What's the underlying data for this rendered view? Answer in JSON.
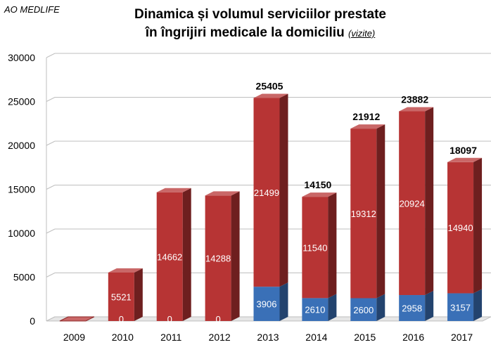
{
  "header": {
    "brand": "AO MEDLIFE",
    "title_line1": "Dinamica și volumul serviciilor prestate",
    "title_line2": "în îngrijiri medicale la domiciliu",
    "title_unit": "(vizite)"
  },
  "chart_data": {
    "type": "bar",
    "stacked": true,
    "categories": [
      "2009",
      "2010",
      "2011",
      "2012",
      "2013",
      "2014",
      "2015",
      "2016",
      "2017"
    ],
    "series": [
      {
        "values": [
          0,
          0,
          0,
          0,
          3906,
          2610,
          2600,
          2958,
          3157
        ],
        "color": "#3a70b7"
      },
      {
        "values": [
          0,
          5521,
          14662,
          14288,
          21499,
          11540,
          19312,
          20924,
          14940
        ],
        "color": "#b73434"
      }
    ],
    "segment_labels": [
      [
        "0",
        "0",
        "0",
        "0",
        "3906",
        "2610",
        "2600",
        "2958",
        "3157"
      ],
      [
        "",
        "5521",
        "14662",
        "14288",
        "21499",
        "11540",
        "19312",
        "20924",
        "14940"
      ]
    ],
    "totals": [
      "",
      "",
      "",
      "",
      "25405",
      "14150",
      "21912",
      "23882",
      "18097"
    ],
    "y_ticks": [
      "0",
      "5000",
      "10000",
      "15000",
      "20000",
      "25000",
      "30000"
    ],
    "ylim": [
      0,
      30000
    ],
    "grid": true,
    "legend": "none"
  }
}
